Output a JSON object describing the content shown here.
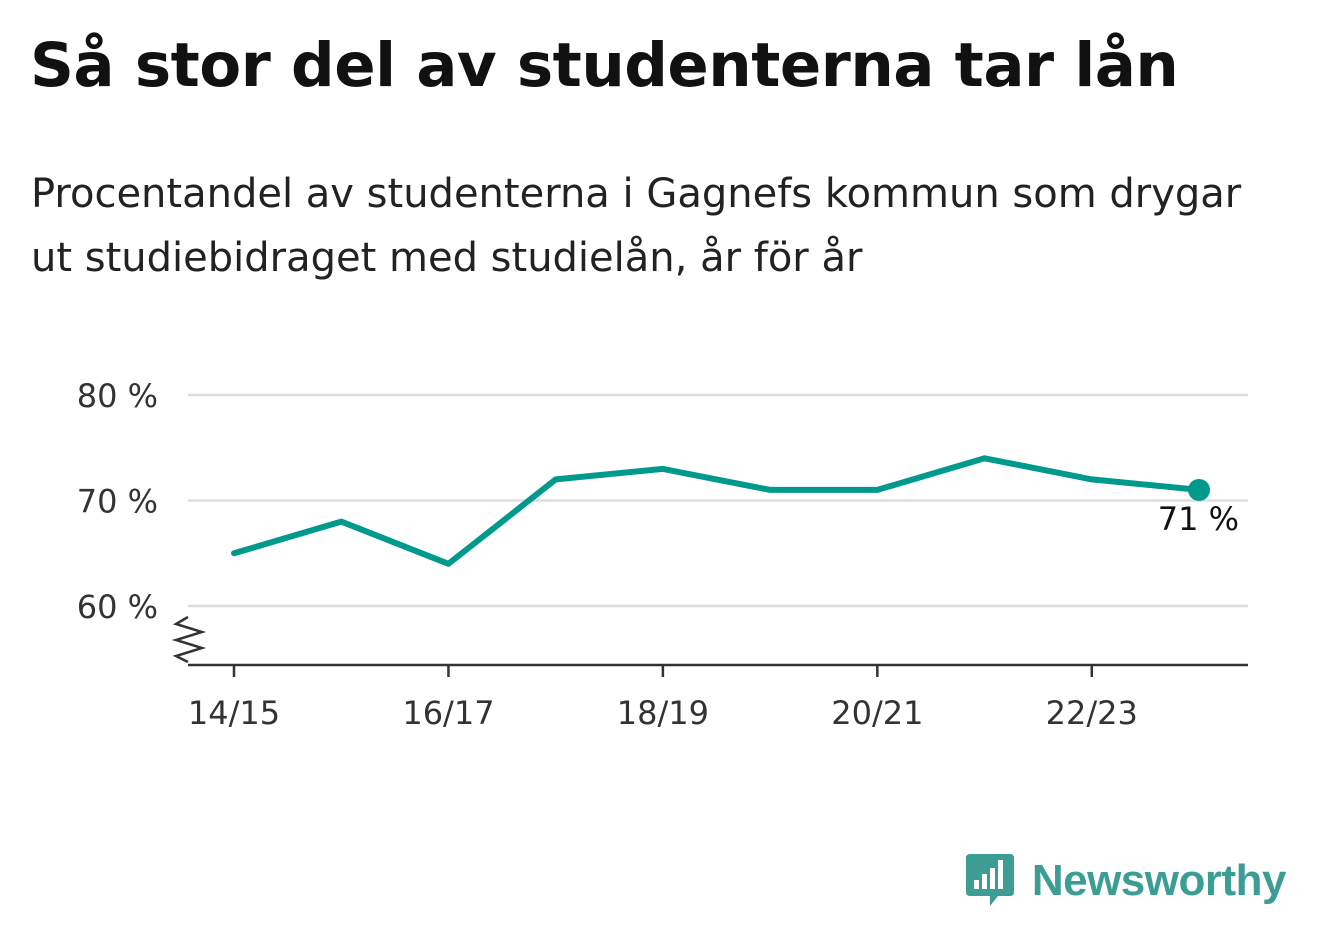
{
  "header": {
    "title": "Så stor del av studenterna tar lån",
    "subtitle": "Procentandel av studenterna i Gagnefs kommun som drygar ut studiebidraget med studielån, år för år"
  },
  "chart_data": {
    "type": "line",
    "x": [
      "14/15",
      "15/16",
      "16/17",
      "17/18",
      "18/19",
      "19/20",
      "20/21",
      "21/22",
      "22/23",
      "23/24"
    ],
    "series": [
      {
        "values": [
          65,
          68,
          64,
          72,
          73,
          71,
          71,
          74,
          72,
          71
        ]
      }
    ],
    "x_tick_labels": [
      "14/15",
      "16/17",
      "18/19",
      "20/21",
      "22/23"
    ],
    "y_ticks": [
      60,
      70,
      80
    ],
    "y_tick_labels": [
      "60 %",
      "70 %",
      "80 %"
    ],
    "ylim": [
      54.5,
      80
    ],
    "y_axis_break": true,
    "grid": true,
    "end_label": "71 %",
    "line_color": "#009a8c",
    "axis_color": "#333333",
    "grid_color": "#dddddd"
  },
  "brand": {
    "name": "Newsworthy",
    "icon": "bar-chart-speech-bubble-icon",
    "color": "#3b9d93"
  }
}
